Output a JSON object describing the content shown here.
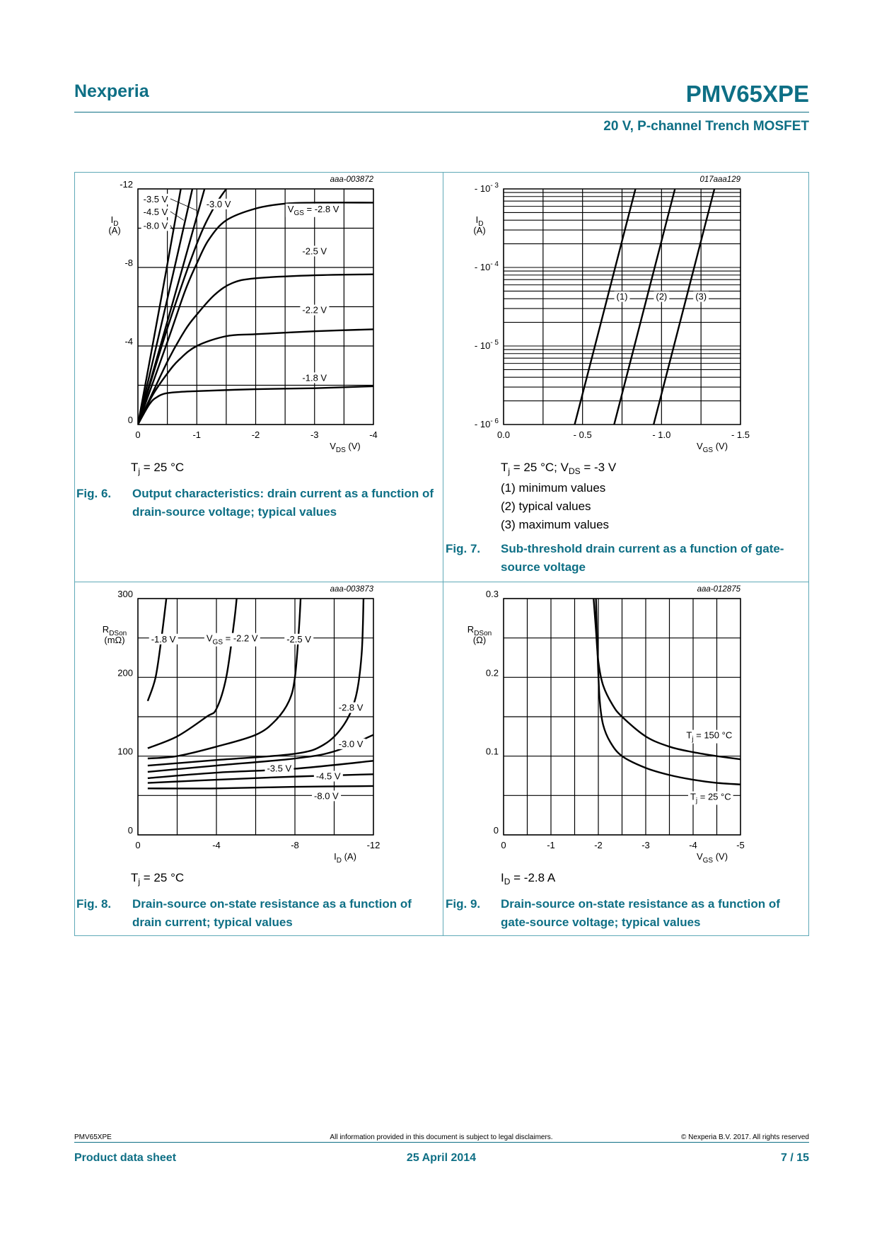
{
  "header": {
    "brand": "Nexperia",
    "part_number": "PMV65XPE",
    "subtitle": "20 V, P-channel Trench MOSFET"
  },
  "figures": [
    {
      "number": "Fig. 6.",
      "caption": "Output characteristics: drain current as a function of drain-source voltage; typical values",
      "conditions": [
        [
          {
            "t": "T"
          },
          {
            "t": "j",
            "sub": true
          },
          {
            "t": " = 25 °C"
          }
        ]
      ]
    },
    {
      "number": "Fig. 7.",
      "caption": "Sub-threshold drain current as a function of gate-source voltage",
      "conditions": [
        [
          {
            "t": "T"
          },
          {
            "t": "j",
            "sub": true
          },
          {
            "t": " = 25 °C; V"
          },
          {
            "t": "DS",
            "sub": true
          },
          {
            "t": " = -3 V"
          }
        ],
        [
          {
            "t": "(1) minimum values"
          }
        ],
        [
          {
            "t": "(2) typical values"
          }
        ],
        [
          {
            "t": "(3) maximum values"
          }
        ]
      ]
    },
    {
      "number": "Fig. 8.",
      "caption": "Drain-source on-state resistance as a function of drain current; typical values",
      "conditions": [
        [
          {
            "t": "T"
          },
          {
            "t": "j",
            "sub": true
          },
          {
            "t": " = 25 °C"
          }
        ]
      ]
    },
    {
      "number": "Fig. 9.",
      "caption": "Drain-source on-state resistance as a function of gate-source voltage; typical values",
      "conditions": [
        [
          {
            "t": "I"
          },
          {
            "t": "D",
            "sub": true
          },
          {
            "t": " = -2.8 A"
          }
        ]
      ]
    }
  ],
  "chart_data": [
    {
      "id": "fig6",
      "type": "line",
      "code": "aaa-003872",
      "xlabel": [
        {
          "t": "V"
        },
        {
          "t": "DS",
          "sub": true
        },
        {
          "t": " (V)"
        }
      ],
      "ylabel": [
        [
          {
            "t": "I"
          },
          {
            "t": "D",
            "sub": true
          }
        ],
        [
          {
            "t": "(A)"
          }
        ]
      ],
      "xlim": [
        0,
        -4
      ],
      "ylim": [
        0,
        -12
      ],
      "yscale": "linear",
      "grid_x_step": -0.5,
      "grid_y_step": -2,
      "xticks": [
        {
          "value": 0,
          "label": "0"
        },
        {
          "value": -1,
          "label": "-1"
        },
        {
          "value": -2,
          "label": "-2"
        },
        {
          "value": -3,
          "label": "-3"
        },
        {
          "value": -4,
          "label": "-4"
        }
      ],
      "yticks": [
        {
          "value": 0,
          "label": "0"
        },
        {
          "value": -4,
          "label": "-4"
        },
        {
          "value": -8,
          "label": "-8"
        },
        {
          "value": -12,
          "label": "-12"
        }
      ],
      "series": [
        {
          "name": "VGS = -1.8 V",
          "x": [
            0,
            -0.1,
            -0.2,
            -0.3,
            -0.5,
            -1,
            -2,
            -3,
            -4
          ],
          "y": [
            0,
            -0.55,
            -1.05,
            -1.35,
            -1.6,
            -1.7,
            -1.8,
            -1.85,
            -1.95
          ]
        },
        {
          "name": "VGS = -2.2 V",
          "x": [
            0,
            -0.25,
            -0.5,
            -0.7,
            -1,
            -1.5,
            -2,
            -3,
            -4
          ],
          "y": [
            0,
            -1.5,
            -2.6,
            -3.3,
            -4.0,
            -4.5,
            -4.6,
            -4.75,
            -4.85
          ]
        },
        {
          "name": "VGS = -2.5 V",
          "x": [
            0,
            -0.5,
            -0.8,
            -1,
            -1.3,
            -1.6,
            -2,
            -3,
            -4
          ],
          "y": [
            0,
            -3.2,
            -4.8,
            -5.6,
            -6.6,
            -7.2,
            -7.45,
            -7.6,
            -7.65
          ]
        },
        {
          "name": "VGS = -2.8 V",
          "x": [
            0,
            -0.5,
            -0.8,
            -1,
            -1.2,
            -1.5,
            -2,
            -2.5,
            -3,
            -4
          ],
          "y": [
            0,
            -4.2,
            -6.8,
            -8.2,
            -9.4,
            -10.4,
            -11.0,
            -11.25,
            -11.3,
            -11.3
          ]
        },
        {
          "name": "VGS = -3.0 V",
          "x": [
            0,
            -0.5,
            -1,
            -1.3,
            -1.55
          ],
          "y": [
            0,
            -4.9,
            -9.2,
            -11.1,
            -12.2
          ]
        },
        {
          "name": "VGS = -3.5 V",
          "x": [
            0,
            -0.6,
            -1.15
          ],
          "y": [
            0,
            -6.3,
            -12.2
          ]
        },
        {
          "name": "VGS = -4.5 V",
          "x": [
            0,
            -0.5,
            -0.94
          ],
          "y": [
            0,
            -6.4,
            -12.2
          ]
        },
        {
          "name": "VGS = -8.0 V",
          "x": [
            0,
            -0.4,
            -0.74
          ],
          "y": [
            0,
            -6.5,
            -12.2
          ]
        }
      ],
      "annotations": [
        {
          "text": [
            {
              "t": "-3.5 V"
            }
          ],
          "x": -0.3,
          "y": -11.5,
          "anchor": "middle",
          "leader": [
            -0.55,
            -11.5,
            -1.0,
            -10.9
          ]
        },
        {
          "text": [
            {
              "t": "-4.5 V"
            }
          ],
          "x": -0.3,
          "y": -10.85,
          "anchor": "middle",
          "leader": [
            -0.55,
            -10.85,
            -0.78,
            -10.4
          ]
        },
        {
          "text": [
            {
              "t": "-8.0 V"
            }
          ],
          "x": -0.3,
          "y": -10.15,
          "anchor": "middle",
          "leader": [
            -0.55,
            -10.15,
            -0.6,
            -9.9
          ]
        },
        {
          "text": [
            {
              "t": "-3.0 V"
            }
          ],
          "x": -1.37,
          "y": -11.25,
          "anchor": "middle"
        },
        {
          "text": [
            {
              "t": "V"
            },
            {
              "t": "GS",
              "sub": true
            },
            {
              "t": " = -2.8 V"
            }
          ],
          "x": -2.98,
          "y": -11.0,
          "anchor": "middle"
        },
        {
          "text": [
            {
              "t": "-2.5 V"
            }
          ],
          "x": -3.0,
          "y": -8.85,
          "anchor": "middle"
        },
        {
          "text": [
            {
              "t": "-2.2 V"
            }
          ],
          "x": -3.0,
          "y": -5.85,
          "anchor": "middle"
        },
        {
          "text": [
            {
              "t": "-1.8 V"
            }
          ],
          "x": -3.0,
          "y": -2.4,
          "anchor": "middle"
        }
      ]
    },
    {
      "id": "fig7",
      "type": "line",
      "code": "017aaa129",
      "xlabel": [
        {
          "t": "V"
        },
        {
          "t": "GS",
          "sub": true
        },
        {
          "t": " (V)"
        }
      ],
      "ylabel": [
        [
          {
            "t": "I"
          },
          {
            "t": "D",
            "sub": true
          }
        ],
        [
          {
            "t": "(A)"
          }
        ]
      ],
      "xlim": [
        0,
        -1.5
      ],
      "ylim": [
        -1e-06,
        -0.001
      ],
      "yscale": "log",
      "grid_x_step": -0.25,
      "xticks": [
        {
          "value": 0,
          "label": "0.0"
        },
        {
          "value": -0.5,
          "label": "- 0.5"
        },
        {
          "value": -1.0,
          "label": "- 1.0"
        },
        {
          "value": -1.5,
          "label": "- 1.5"
        }
      ],
      "yticks": [
        {
          "value": -1e-06,
          "label": [
            {
              "t": "- 10"
            },
            {
              "t": "- 6",
              "sup": true
            }
          ]
        },
        {
          "value": -1e-05,
          "label": [
            {
              "t": "- 10"
            },
            {
              "t": "- 5",
              "sup": true
            }
          ]
        },
        {
          "value": -0.0001,
          "label": [
            {
              "t": "- 10"
            },
            {
              "t": "- 4",
              "sup": true
            }
          ]
        },
        {
          "value": -0.001,
          "label": [
            {
              "t": "- 10"
            },
            {
              "t": "- 3",
              "sup": true
            }
          ]
        }
      ],
      "series": [
        {
          "name": "(1) minimum values",
          "x": [
            -0.45,
            -0.835
          ],
          "y": [
            -1e-06,
            -0.001
          ]
        },
        {
          "name": "(2) typical values",
          "x": [
            -0.7,
            -1.085
          ],
          "y": [
            -1e-06,
            -0.001
          ]
        },
        {
          "name": "(3) maximum values",
          "x": [
            -0.95,
            -1.335
          ],
          "y": [
            -1e-06,
            -0.001
          ]
        }
      ],
      "annotations": [
        {
          "text": [
            {
              "t": "(1)"
            }
          ],
          "x": -0.75,
          "y": -4.3e-05,
          "anchor": "middle"
        },
        {
          "text": [
            {
              "t": "(2)"
            }
          ],
          "x": -1.0,
          "y": -4.3e-05,
          "anchor": "middle"
        },
        {
          "text": [
            {
              "t": "(3)"
            }
          ],
          "x": -1.25,
          "y": -4.3e-05,
          "anchor": "middle"
        }
      ]
    },
    {
      "id": "fig8",
      "type": "line",
      "code": "aaa-003873",
      "xlabel": [
        {
          "t": "I"
        },
        {
          "t": "D",
          "sub": true
        },
        {
          "t": " (A)"
        }
      ],
      "ylabel": [
        [
          {
            "t": "R"
          },
          {
            "t": "DSon",
            "sub": true
          }
        ],
        [
          {
            "t": "(mΩ)"
          }
        ]
      ],
      "xlim": [
        0,
        -12
      ],
      "ylim": [
        0,
        300
      ],
      "yscale": "linear",
      "grid_x_step": -2,
      "grid_y_step": 50,
      "xticks": [
        {
          "value": 0,
          "label": "0"
        },
        {
          "value": -4,
          "label": "-4"
        },
        {
          "value": -8,
          "label": "-8"
        },
        {
          "value": -12,
          "label": "-12"
        }
      ],
      "yticks": [
        {
          "value": 0,
          "label": "0"
        },
        {
          "value": 100,
          "label": "100"
        },
        {
          "value": 200,
          "label": "200"
        },
        {
          "value": 300,
          "label": "300"
        }
      ],
      "series": [
        {
          "name": "VGS = -1.8 V",
          "x": [
            -0.5,
            -0.9,
            -1.2,
            -1.4,
            -1.47
          ],
          "y": [
            170,
            200,
            250,
            290,
            305
          ]
        },
        {
          "name": "VGS = -2.2 V",
          "x": [
            -0.5,
            -2,
            -3.5,
            -4,
            -4.5,
            -4.9,
            -5.05
          ],
          "y": [
            110,
            125,
            150,
            160,
            200,
            270,
            305
          ]
        },
        {
          "name": "VGS = -2.5 V",
          "x": [
            -0.5,
            -2,
            -4,
            -6,
            -7,
            -7.7,
            -8,
            -8.2,
            -8.3
          ],
          "y": [
            97,
            100,
            112,
            127,
            145,
            170,
            200,
            260,
            305
          ]
        },
        {
          "name": "VGS = -2.8 V",
          "x": [
            -0.5,
            -4,
            -8,
            -9.5,
            -10.5,
            -11.1,
            -11.4,
            -11.5
          ],
          "y": [
            88,
            95,
            103,
            115,
            140,
            175,
            230,
            305
          ]
        },
        {
          "name": "VGS = -3.0 V",
          "x": [
            -0.5,
            -4,
            -8,
            -10,
            -12
          ],
          "y": [
            80,
            88,
            97,
            106,
            127
          ]
        },
        {
          "name": "VGS = -3.5 V",
          "x": [
            -0.5,
            -4,
            -8,
            -12
          ],
          "y": [
            72,
            79,
            84,
            94
          ]
        },
        {
          "name": "VGS = -4.5 V",
          "x": [
            -0.5,
            -4,
            -8,
            -12
          ],
          "y": [
            66,
            70,
            74,
            77
          ]
        },
        {
          "name": "VGS = -8.0 V",
          "x": [
            -0.5,
            -4,
            -8,
            -12
          ],
          "y": [
            59,
            59,
            61,
            62
          ]
        }
      ],
      "annotations": [
        {
          "text": [
            {
              "t": "-1.8 V"
            }
          ],
          "x": -1.3,
          "y": 249,
          "anchor": "middle"
        },
        {
          "text": [
            {
              "t": "V"
            },
            {
              "t": "GS",
              "sub": true
            },
            {
              "t": " = -2.2 V"
            }
          ],
          "x": -4.8,
          "y": 250,
          "anchor": "middle"
        },
        {
          "text": [
            {
              "t": "-2.5 V"
            }
          ],
          "x": -8.2,
          "y": 249,
          "anchor": "middle"
        },
        {
          "text": [
            {
              "t": "-2.8 V"
            }
          ],
          "x": -10.85,
          "y": 162,
          "anchor": "middle"
        },
        {
          "text": [
            {
              "t": "-3.0 V"
            }
          ],
          "x": -10.85,
          "y": 116,
          "anchor": "middle"
        },
        {
          "text": [
            {
              "t": "-3.5 V"
            }
          ],
          "x": -7.2,
          "y": 85,
          "anchor": "middle"
        },
        {
          "text": [
            {
              "t": "-4.5 V"
            }
          ],
          "x": -9.7,
          "y": 75,
          "anchor": "middle"
        },
        {
          "text": [
            {
              "t": "-8.0 V"
            }
          ],
          "x": -9.6,
          "y": 50,
          "anchor": "middle"
        }
      ]
    },
    {
      "id": "fig9",
      "type": "line",
      "code": "aaa-012875",
      "xlabel": [
        {
          "t": "V"
        },
        {
          "t": "GS",
          "sub": true
        },
        {
          "t": " (V)"
        }
      ],
      "ylabel": [
        [
          {
            "t": "R"
          },
          {
            "t": "DSon",
            "sub": true
          }
        ],
        [
          {
            "t": "(Ω)"
          }
        ]
      ],
      "xlim": [
        0,
        -5
      ],
      "ylim": [
        0,
        0.3
      ],
      "yscale": "linear",
      "grid_x_step": -0.5,
      "grid_y_step": 0.05,
      "xticks": [
        {
          "value": 0,
          "label": "0"
        },
        {
          "value": -1,
          "label": "-1"
        },
        {
          "value": -2,
          "label": "-2"
        },
        {
          "value": -3,
          "label": "-3"
        },
        {
          "value": -4,
          "label": "-4"
        },
        {
          "value": -5,
          "label": "-5"
        }
      ],
      "yticks": [
        {
          "value": 0,
          "label": "0"
        },
        {
          "value": 0.1,
          "label": "0.1"
        },
        {
          "value": 0.2,
          "label": "0.2"
        },
        {
          "value": 0.3,
          "label": "0.3"
        }
      ],
      "series": [
        {
          "name": "Tj = 150 °C",
          "x": [
            -1.9,
            -1.95,
            -2.0,
            -2.1,
            -2.3,
            -2.5,
            -3,
            -3.5,
            -4,
            -4.5,
            -5
          ],
          "y": [
            0.3,
            0.26,
            0.22,
            0.19,
            0.165,
            0.15,
            0.125,
            0.112,
            0.105,
            0.1,
            0.096
          ]
        },
        {
          "name": "Tj = 25 °C",
          "x": [
            -1.95,
            -1.99,
            -2.03,
            -2.1,
            -2.25,
            -2.5,
            -3,
            -3.5,
            -4,
            -4.5,
            -5
          ],
          "y": [
            0.3,
            0.22,
            0.17,
            0.14,
            0.118,
            0.1,
            0.085,
            0.076,
            0.07,
            0.066,
            0.064
          ]
        }
      ],
      "annotations": [
        {
          "text": [
            {
              "t": "T"
            },
            {
              "t": "j",
              "sub": true
            },
            {
              "t": " = 150 °C"
            }
          ],
          "x": -4.34,
          "y": 0.127,
          "anchor": "middle"
        },
        {
          "text": [
            {
              "t": "T"
            },
            {
              "t": "j",
              "sub": true
            },
            {
              "t": " = 25 °C"
            }
          ],
          "x": -4.37,
          "y": 0.049,
          "anchor": "middle"
        }
      ]
    }
  ],
  "footer": {
    "doc_id": "PMV65XPE",
    "disclaimer": "All information provided in this document is subject to legal disclaimers.",
    "copyright": "© Nexperia B.V. 2017. All rights reserved",
    "doc_type": "Product data sheet",
    "date": "25 April 2014",
    "page": "7 / 15"
  }
}
